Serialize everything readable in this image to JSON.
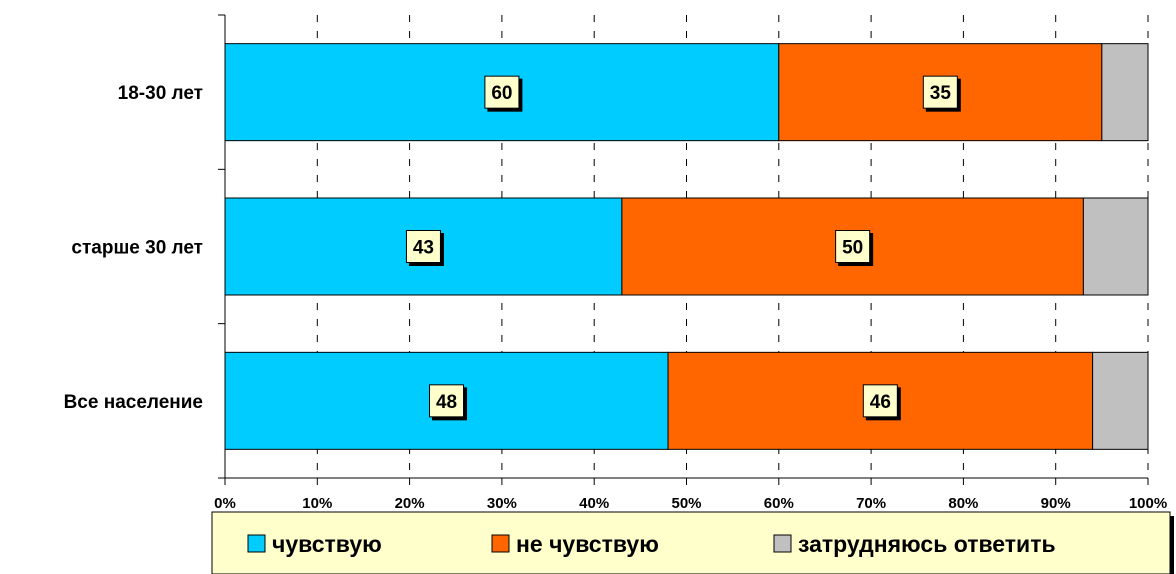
{
  "chart_data": {
    "type": "bar",
    "orientation": "horizontal",
    "stacked": true,
    "percent_stacked": true,
    "categories": [
      "18-30 лет",
      "старше 30 лет",
      "Все население"
    ],
    "series": [
      {
        "name": "чувствую",
        "values": [
          60,
          43,
          48
        ],
        "color": "#00CCFF"
      },
      {
        "name": "не чувствую",
        "values": [
          35,
          50,
          46
        ],
        "color": "#FF6600"
      },
      {
        "name": "затрудняюсь ответить",
        "values": [
          5,
          7,
          6
        ],
        "color": "#C0C0C0"
      }
    ],
    "data_labels_series": [
      "чувствую",
      "не чувствую"
    ],
    "x_ticks": [
      "0%",
      "10%",
      "20%",
      "30%",
      "40%",
      "50%",
      "60%",
      "70%",
      "80%",
      "90%",
      "100%"
    ],
    "xlim": [
      0,
      100
    ],
    "grid": "vertical dashed",
    "legend_position": "bottom",
    "label_box_color": "#FFFFCC"
  }
}
